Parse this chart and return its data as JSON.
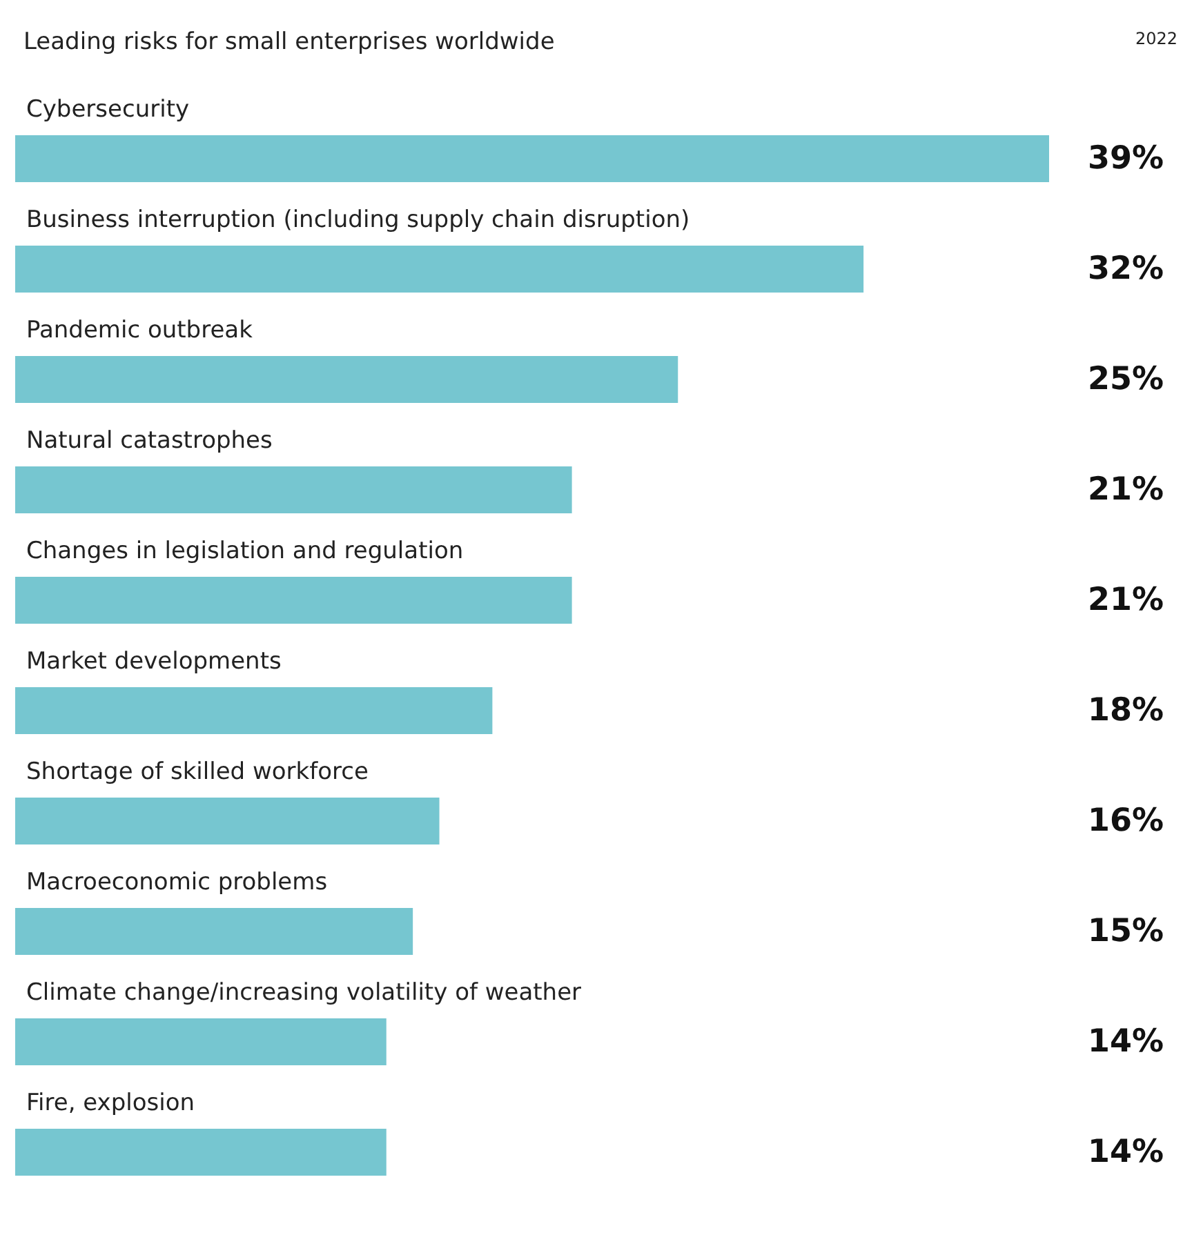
{
  "chart_data": {
    "type": "bar",
    "orientation": "horizontal",
    "title": "Leading risks for small enterprises worldwide",
    "annotations": [
      "2022"
    ],
    "categories": [
      "Cybersecurity",
      "Business interruption (including supply chain disruption)",
      "Pandemic outbreak",
      "Natural catastrophes",
      "Changes in legislation and regulation",
      "Market developments",
      "Shortage of skilled workforce",
      "Macroeconomic problems",
      "Climate change/increasing volatility of weather",
      "Fire, explosion"
    ],
    "values": [
      39,
      32,
      25,
      21,
      21,
      18,
      16,
      15,
      14,
      14
    ],
    "value_labels": [
      "39%",
      "32%",
      "25%",
      "21%",
      "21%",
      "18%",
      "16%",
      "15%",
      "14%",
      "14%"
    ],
    "color": "#76c6d0",
    "grid": false
  }
}
